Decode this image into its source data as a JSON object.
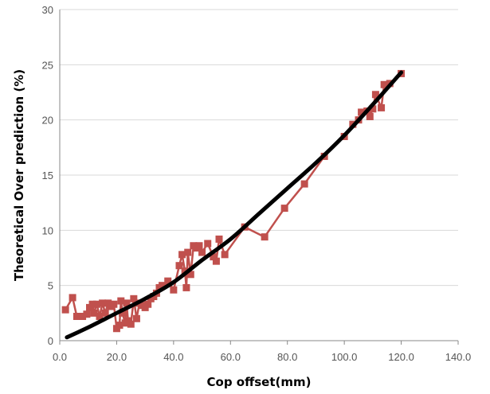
{
  "chart_data": {
    "type": "scatter",
    "title": "",
    "xlabel": "Cop offset(mm)",
    "ylabel": "Theoretical  Over prediction  (%)",
    "xlim": [
      0,
      140
    ],
    "ylim": [
      0,
      30
    ],
    "x_ticks": [
      "0.0",
      "20.0",
      "40.0",
      "60.0",
      "80.0",
      "100.0",
      "120.0",
      "140.0"
    ],
    "y_ticks": [
      "0",
      "5",
      "10",
      "15",
      "20",
      "25",
      "30"
    ],
    "grid": "horizontal",
    "legend": "none",
    "series": [
      {
        "style": "line-with-square-markers",
        "color": "#c0504d",
        "points": [
          [
            2,
            2.8
          ],
          [
            4.5,
            3.9
          ],
          [
            6,
            2.2
          ],
          [
            8,
            2.2
          ],
          [
            9.5,
            2.4
          ],
          [
            10.5,
            3.0
          ],
          [
            11.5,
            3.3
          ],
          [
            12,
            2.5
          ],
          [
            13,
            3.3
          ],
          [
            14,
            2.2
          ],
          [
            15,
            3.4
          ],
          [
            16,
            2.5
          ],
          [
            17,
            3.4
          ],
          [
            18,
            3.1
          ],
          [
            19,
            3.3
          ],
          [
            20,
            1.1
          ],
          [
            21,
            1.4
          ],
          [
            21.5,
            3.6
          ],
          [
            22,
            2.5
          ],
          [
            23,
            1.6
          ],
          [
            23.5,
            3.4
          ],
          [
            24,
            1.8
          ],
          [
            25,
            1.5
          ],
          [
            26,
            3.8
          ],
          [
            27,
            2.0
          ],
          [
            28,
            3.4
          ],
          [
            29,
            3.2
          ],
          [
            30,
            3.0
          ],
          [
            31,
            3.3
          ],
          [
            32,
            3.8
          ],
          [
            33,
            4.0
          ],
          [
            34,
            4.3
          ],
          [
            35,
            4.8
          ],
          [
            36,
            5.0
          ],
          [
            38,
            5.4
          ],
          [
            40,
            4.6
          ],
          [
            42,
            6.8
          ],
          [
            43,
            7.8
          ],
          [
            44,
            6.3
          ],
          [
            44.5,
            4.8
          ],
          [
            45,
            8.0
          ],
          [
            46,
            6.0
          ],
          [
            47,
            8.6
          ],
          [
            48,
            8.4
          ],
          [
            49,
            8.6
          ],
          [
            50,
            8.0
          ],
          [
            52,
            8.8
          ],
          [
            54,
            7.6
          ],
          [
            55,
            7.2
          ],
          [
            56,
            9.2
          ],
          [
            58,
            7.8
          ],
          [
            65,
            10.3
          ],
          [
            72,
            9.4
          ],
          [
            79,
            12.0
          ],
          [
            86,
            14.2
          ],
          [
            93,
            16.7
          ],
          [
            100,
            18.5
          ],
          [
            103,
            19.6
          ],
          [
            105,
            20.0
          ],
          [
            106,
            20.7
          ],
          [
            108,
            20.8
          ],
          [
            109,
            20.3
          ],
          [
            110,
            21.0
          ],
          [
            111,
            22.3
          ],
          [
            113,
            21.1
          ],
          [
            114,
            23.2
          ],
          [
            116,
            23.3
          ],
          [
            120,
            24.2
          ]
        ]
      },
      {
        "style": "trend-curve",
        "color": "#000000",
        "points": [
          [
            2.5,
            0.3
          ],
          [
            10,
            1.2
          ],
          [
            20,
            2.5
          ],
          [
            30,
            3.8
          ],
          [
            40,
            5.3
          ],
          [
            50,
            7.3
          ],
          [
            60,
            9.2
          ],
          [
            70,
            11.5
          ],
          [
            80,
            13.8
          ],
          [
            90,
            16.1
          ],
          [
            100,
            18.6
          ],
          [
            110,
            21.4
          ],
          [
            120,
            24.3
          ]
        ]
      }
    ]
  }
}
